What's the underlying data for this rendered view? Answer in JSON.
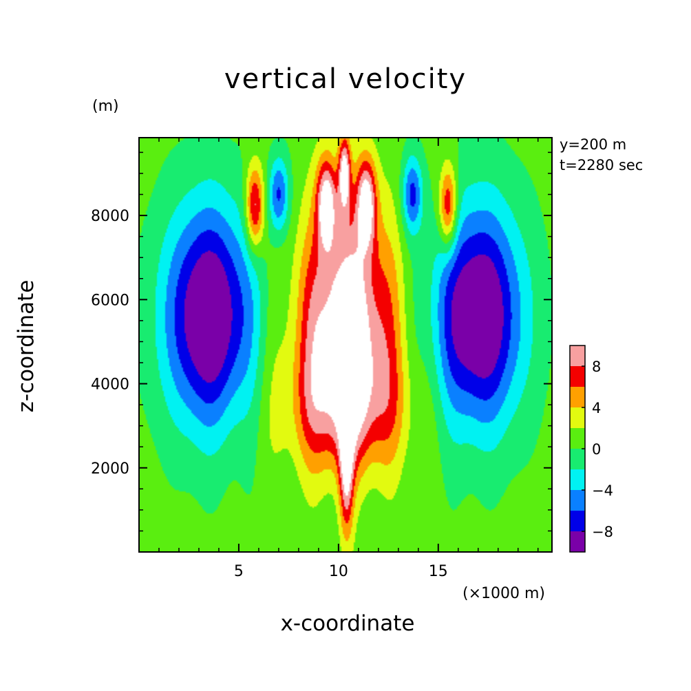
{
  "chart_data": {
    "type": "heatmap",
    "subtype": "filled-contour",
    "title": "vertical velocity",
    "xlabel": "x-coordinate",
    "ylabel": "z-coordinate",
    "x_unit_label": "(×1000 m)",
    "y_unit_label": "(m)",
    "annotations": [
      "y=200 m",
      "t=2280 sec"
    ],
    "xlim": [
      0,
      20.7
    ],
    "ylim": [
      0,
      9850
    ],
    "x_ticks": [
      5,
      10,
      15
    ],
    "x_tick_labels": [
      "5",
      "10",
      "15"
    ],
    "y_ticks": [
      2000,
      4000,
      6000,
      8000
    ],
    "y_tick_labels": [
      "2000",
      "4000",
      "6000",
      "8000"
    ],
    "colorbar": {
      "tick_labels": [
        "8",
        "4",
        "0",
        "−4",
        "−8"
      ],
      "tick_values": [
        8,
        4,
        0,
        -4,
        -8
      ],
      "levels": [
        {
          "min": -10,
          "max": -8,
          "color": "#7a00a8"
        },
        {
          "min": -8,
          "max": -6,
          "color": "#0000e8"
        },
        {
          "min": -6,
          "max": -4,
          "color": "#0a80ff"
        },
        {
          "min": -4,
          "max": -2,
          "color": "#00f2f2"
        },
        {
          "min": -2,
          "max": 0,
          "color": "#18ec70"
        },
        {
          "min": 0,
          "max": 2,
          "color": "#5aee10"
        },
        {
          "min": 2,
          "max": 4,
          "color": "#e2fa10"
        },
        {
          "min": 4,
          "max": 6,
          "color": "#ffa000"
        },
        {
          "min": 6,
          "max": 8,
          "color": "#f40000"
        },
        {
          "min": 8,
          "max": 10,
          "color": "#f8a0a0"
        }
      ],
      "above_max_color": "#ffffff"
    },
    "features": [
      {
        "kind": "updraft",
        "x": 10.4,
        "z": 5500,
        "w": 12,
        "rx": 2.3,
        "rz": 2600
      },
      {
        "kind": "updraft",
        "x": 10.4,
        "z": 2000,
        "w": 8,
        "rx": 0.35,
        "rz": 1700
      },
      {
        "kind": "updraft",
        "x": 10.3,
        "z": 9000,
        "w": 10,
        "rx": 0.3,
        "rz": 900
      },
      {
        "kind": "updraft",
        "x": 9.4,
        "z": 8300,
        "w": 10,
        "rx": 0.5,
        "rz": 1100
      },
      {
        "kind": "updraft",
        "x": 11.4,
        "z": 8300,
        "w": 10,
        "rx": 0.5,
        "rz": 1100
      },
      {
        "kind": "updraft",
        "x": 5.8,
        "z": 8200,
        "w": 9,
        "rx": 0.45,
        "rz": 1000
      },
      {
        "kind": "updraft",
        "x": 15.5,
        "z": 8200,
        "w": 9,
        "rx": 0.45,
        "rz": 1000
      },
      {
        "kind": "updraft",
        "x": 10.4,
        "z": 3400,
        "w": 6,
        "rx": 3.0,
        "rz": 1600
      },
      {
        "kind": "downdraft",
        "x": 3.5,
        "z": 5600,
        "w": -12,
        "rx": 2.2,
        "rz": 2600
      },
      {
        "kind": "downdraft",
        "x": 17.0,
        "z": 5600,
        "w": -12,
        "rx": 2.2,
        "rz": 2600
      },
      {
        "kind": "downdraft",
        "x": 7.0,
        "z": 8500,
        "w": -7,
        "rx": 0.5,
        "rz": 900
      },
      {
        "kind": "downdraft",
        "x": 13.7,
        "z": 8500,
        "w": -7,
        "rx": 0.5,
        "rz": 900
      }
    ]
  }
}
